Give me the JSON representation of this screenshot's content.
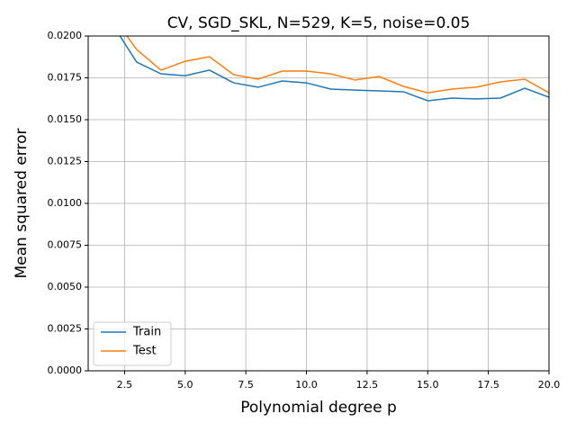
{
  "chart_data": {
    "type": "line",
    "title": "CV, SGD_SKL, N=529, K=5, noise=0.05",
    "xlabel": "Polynomial degree p",
    "ylabel": "Mean squared error",
    "x": [
      2,
      3,
      4,
      5,
      6,
      7,
      8,
      9,
      10,
      11,
      12,
      13,
      14,
      15,
      16,
      17,
      18,
      19,
      20
    ],
    "series": [
      {
        "name": "Train",
        "color": "#1f77b4",
        "values": [
          0.0207,
          0.01844,
          0.01774,
          0.01763,
          0.01796,
          0.0172,
          0.01694,
          0.01731,
          0.0172,
          0.01683,
          0.01677,
          0.01672,
          0.01667,
          0.01613,
          0.01629,
          0.01624,
          0.01629,
          0.01688,
          0.01634
        ]
      },
      {
        "name": "Test",
        "color": "#ff7f0e",
        "values": [
          0.0212,
          0.01919,
          0.01796,
          0.01849,
          0.01876,
          0.01769,
          0.01742,
          0.0179,
          0.0179,
          0.01774,
          0.01737,
          0.01758,
          0.01699,
          0.01661,
          0.01683,
          0.01694,
          0.01726,
          0.01742,
          0.01661
        ]
      }
    ],
    "xlim": [
      1,
      20
    ],
    "xticks": [
      2.5,
      {
        "value": 5,
        "label": "5.0"
      },
      7.5,
      {
        "value": 10,
        "label": "10.0"
      },
      12.5,
      {
        "value": 15,
        "label": "15.0"
      },
      17.5,
      {
        "value": 20,
        "label": "20.0"
      }
    ],
    "ylim": [
      0,
      0.02
    ],
    "yticks": [
      {
        "value": 0,
        "label": "0.0000"
      },
      {
        "value": 0.0025,
        "label": "0.0025"
      },
      {
        "value": 0.005,
        "label": "0.0050"
      },
      {
        "value": 0.0075,
        "label": "0.0075"
      },
      {
        "value": 0.01,
        "label": "0.0100"
      },
      {
        "value": 0.0125,
        "label": "0.0125"
      },
      {
        "value": 0.015,
        "label": "0.0150"
      },
      {
        "value": 0.0175,
        "label": "0.0175"
      },
      {
        "value": 0.02,
        "label": "0.0200"
      }
    ],
    "grid": true,
    "legend": "lower left"
  }
}
